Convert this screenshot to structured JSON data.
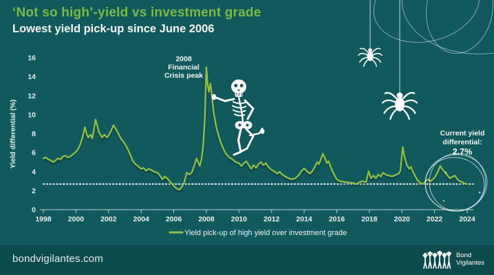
{
  "header": {
    "title": "‘Not so high’-yield vs investment grade",
    "subtitle": "Lowest yield pick-up since June 2006"
  },
  "chart_data": {
    "type": "line",
    "title": "‘Not so high’-yield vs investment grade — lowest yield pick-up since June 2006",
    "xlabel": "",
    "ylabel": "Yield differential (%)",
    "xlim": [
      1998,
      2024.5
    ],
    "ylim": [
      0,
      16
    ],
    "x_ticks": [
      1998,
      2000,
      2002,
      2004,
      2006,
      2008,
      2010,
      2012,
      2014,
      2016,
      2018,
      2020,
      2022,
      2024
    ],
    "y_ticks": [
      0,
      2,
      4,
      6,
      8,
      10,
      12,
      14,
      16
    ],
    "grid": false,
    "legend_position": "bottom-center",
    "reference_line": {
      "value": 2.7,
      "style": "dotted",
      "color": "#ffffff"
    },
    "series": [
      {
        "name": "Yield pick-up of high yield over investment grade",
        "color": "#8fbf4a",
        "points": [
          [
            1998.0,
            5.4
          ],
          [
            1998.15,
            5.5
          ],
          [
            1998.3,
            5.3
          ],
          [
            1998.45,
            5.2
          ],
          [
            1998.6,
            5.0
          ],
          [
            1998.75,
            5.2
          ],
          [
            1998.9,
            5.4
          ],
          [
            1999.05,
            5.3
          ],
          [
            1999.2,
            5.6
          ],
          [
            1999.35,
            5.7
          ],
          [
            1999.5,
            5.5
          ],
          [
            1999.65,
            5.6
          ],
          [
            1999.8,
            5.8
          ],
          [
            1999.95,
            6.0
          ],
          [
            2000.1,
            6.3
          ],
          [
            2000.25,
            6.8
          ],
          [
            2000.4,
            7.6
          ],
          [
            2000.55,
            8.7
          ],
          [
            2000.65,
            8.0
          ],
          [
            2000.75,
            7.6
          ],
          [
            2000.9,
            7.9
          ],
          [
            2001.0,
            7.5
          ],
          [
            2001.1,
            8.4
          ],
          [
            2001.2,
            9.5
          ],
          [
            2001.3,
            8.9
          ],
          [
            2001.4,
            8.2
          ],
          [
            2001.5,
            7.9
          ],
          [
            2001.6,
            7.6
          ],
          [
            2001.75,
            7.9
          ],
          [
            2001.9,
            7.6
          ],
          [
            2002.0,
            7.8
          ],
          [
            2002.15,
            8.3
          ],
          [
            2002.3,
            8.9
          ],
          [
            2002.45,
            8.5
          ],
          [
            2002.6,
            8.0
          ],
          [
            2002.75,
            7.5
          ],
          [
            2002.9,
            7.2
          ],
          [
            2003.05,
            6.8
          ],
          [
            2003.2,
            6.3
          ],
          [
            2003.35,
            5.7
          ],
          [
            2003.5,
            5.1
          ],
          [
            2003.65,
            4.8
          ],
          [
            2003.8,
            4.6
          ],
          [
            2004.0,
            4.3
          ],
          [
            2004.15,
            4.4
          ],
          [
            2004.3,
            4.1
          ],
          [
            2004.45,
            4.3
          ],
          [
            2004.6,
            4.2
          ],
          [
            2004.8,
            4.0
          ],
          [
            2005.0,
            3.9
          ],
          [
            2005.15,
            3.6
          ],
          [
            2005.3,
            3.2
          ],
          [
            2005.45,
            3.5
          ],
          [
            2005.6,
            3.3
          ],
          [
            2005.75,
            3.0
          ],
          [
            2005.9,
            2.7
          ],
          [
            2006.05,
            2.4
          ],
          [
            2006.2,
            2.2
          ],
          [
            2006.35,
            2.1
          ],
          [
            2006.5,
            2.4
          ],
          [
            2006.65,
            2.9
          ],
          [
            2006.8,
            3.9
          ],
          [
            2006.95,
            3.7
          ],
          [
            2007.1,
            3.9
          ],
          [
            2007.25,
            4.6
          ],
          [
            2007.4,
            5.4
          ],
          [
            2007.5,
            5.0
          ],
          [
            2007.6,
            4.6
          ],
          [
            2007.7,
            5.3
          ],
          [
            2007.8,
            6.6
          ],
          [
            2007.9,
            9.5
          ],
          [
            2008.0,
            15.0
          ],
          [
            2008.08,
            13.2
          ],
          [
            2008.15,
            12.4
          ],
          [
            2008.25,
            13.3
          ],
          [
            2008.35,
            11.8
          ],
          [
            2008.45,
            10.2
          ],
          [
            2008.6,
            8.8
          ],
          [
            2008.75,
            7.8
          ],
          [
            2008.9,
            7.0
          ],
          [
            2009.05,
            6.4
          ],
          [
            2009.2,
            5.9
          ],
          [
            2009.4,
            5.5
          ],
          [
            2009.6,
            5.3
          ],
          [
            2009.8,
            5.0
          ],
          [
            2010.0,
            4.9
          ],
          [
            2010.15,
            4.6
          ],
          [
            2010.3,
            4.9
          ],
          [
            2010.45,
            5.1
          ],
          [
            2010.6,
            4.7
          ],
          [
            2010.75,
            4.3
          ],
          [
            2010.9,
            4.7
          ],
          [
            2011.05,
            4.4
          ],
          [
            2011.2,
            4.8
          ],
          [
            2011.35,
            5.0
          ],
          [
            2011.5,
            4.7
          ],
          [
            2011.65,
            4.9
          ],
          [
            2011.8,
            4.5
          ],
          [
            2012.0,
            4.2
          ],
          [
            2012.2,
            4.0
          ],
          [
            2012.35,
            3.8
          ],
          [
            2012.5,
            4.0
          ],
          [
            2012.65,
            3.7
          ],
          [
            2012.85,
            3.5
          ],
          [
            2013.05,
            3.3
          ],
          [
            2013.25,
            3.2
          ],
          [
            2013.45,
            3.3
          ],
          [
            2013.65,
            3.6
          ],
          [
            2013.85,
            4.1
          ],
          [
            2014.0,
            4.35
          ],
          [
            2014.2,
            4.0
          ],
          [
            2014.35,
            3.8
          ],
          [
            2014.5,
            4.05
          ],
          [
            2014.65,
            4.5
          ],
          [
            2014.8,
            5.0
          ],
          [
            2014.9,
            4.8
          ],
          [
            2015.0,
            5.2
          ],
          [
            2015.15,
            5.9
          ],
          [
            2015.3,
            5.3
          ],
          [
            2015.4,
            4.9
          ],
          [
            2015.5,
            5.1
          ],
          [
            2015.65,
            4.4
          ],
          [
            2015.8,
            3.8
          ],
          [
            2016.0,
            3.2
          ],
          [
            2016.2,
            3.0
          ],
          [
            2016.4,
            2.95
          ],
          [
            2016.6,
            2.9
          ],
          [
            2016.8,
            2.85
          ],
          [
            2017.0,
            2.8
          ],
          [
            2017.2,
            2.7
          ],
          [
            2017.4,
            2.9
          ],
          [
            2017.6,
            3.0
          ],
          [
            2017.8,
            2.9
          ],
          [
            2017.95,
            4.05
          ],
          [
            2018.1,
            3.3
          ],
          [
            2018.25,
            3.6
          ],
          [
            2018.4,
            3.3
          ],
          [
            2018.55,
            3.7
          ],
          [
            2018.7,
            3.5
          ],
          [
            2018.85,
            3.9
          ],
          [
            2019.0,
            3.7
          ],
          [
            2019.2,
            3.6
          ],
          [
            2019.4,
            3.5
          ],
          [
            2019.6,
            3.65
          ],
          [
            2019.8,
            3.8
          ],
          [
            2019.9,
            4.1
          ],
          [
            2020.05,
            6.6
          ],
          [
            2020.15,
            5.6
          ],
          [
            2020.3,
            4.7
          ],
          [
            2020.45,
            4.3
          ],
          [
            2020.55,
            4.5
          ],
          [
            2020.7,
            3.9
          ],
          [
            2020.85,
            3.4
          ],
          [
            2021.0,
            3.0
          ],
          [
            2021.15,
            2.8
          ],
          [
            2021.3,
            2.7
          ],
          [
            2021.45,
            3.0
          ],
          [
            2021.6,
            3.2
          ],
          [
            2021.75,
            3.0
          ],
          [
            2021.9,
            3.2
          ],
          [
            2022.05,
            3.5
          ],
          [
            2022.2,
            4.0
          ],
          [
            2022.35,
            4.6
          ],
          [
            2022.5,
            4.2
          ],
          [
            2022.65,
            3.9
          ],
          [
            2022.8,
            3.6
          ],
          [
            2022.95,
            3.3
          ],
          [
            2023.1,
            3.45
          ],
          [
            2023.25,
            3.6
          ],
          [
            2023.4,
            3.2
          ],
          [
            2023.55,
            3.0
          ],
          [
            2023.7,
            2.9
          ],
          [
            2023.85,
            2.75
          ],
          [
            2024.0,
            2.7
          ]
        ]
      }
    ],
    "annotations": [
      {
        "id": "crisis-peak",
        "lines": [
          "2008",
          "Financial",
          "Crisis peak"
        ],
        "x": 2008,
        "y": 15.0
      },
      {
        "id": "current-yield",
        "lines": [
          "Current yield",
          "differential:"
        ],
        "value_label": "2.7%",
        "x": 2024,
        "y": 2.7
      }
    ]
  },
  "legend": {
    "label": "Yield pick-up of high yield over investment grade"
  },
  "footer": {
    "website": "bondvigilantes.com",
    "logo_line1": "Bond",
    "logo_line2": "Vigilantes"
  },
  "decorations": {
    "icons": [
      "spider-icon",
      "spider-icon",
      "spider-thread",
      "web-loops",
      "skeleton-illustration",
      "sketch-circle-annotation"
    ]
  },
  "colors": {
    "background": "#11595d",
    "footer_background": "#0d4a4e",
    "title_green": "#7cba4a",
    "line_green": "#8fbf4a",
    "text_white": "#f4f8f7"
  }
}
